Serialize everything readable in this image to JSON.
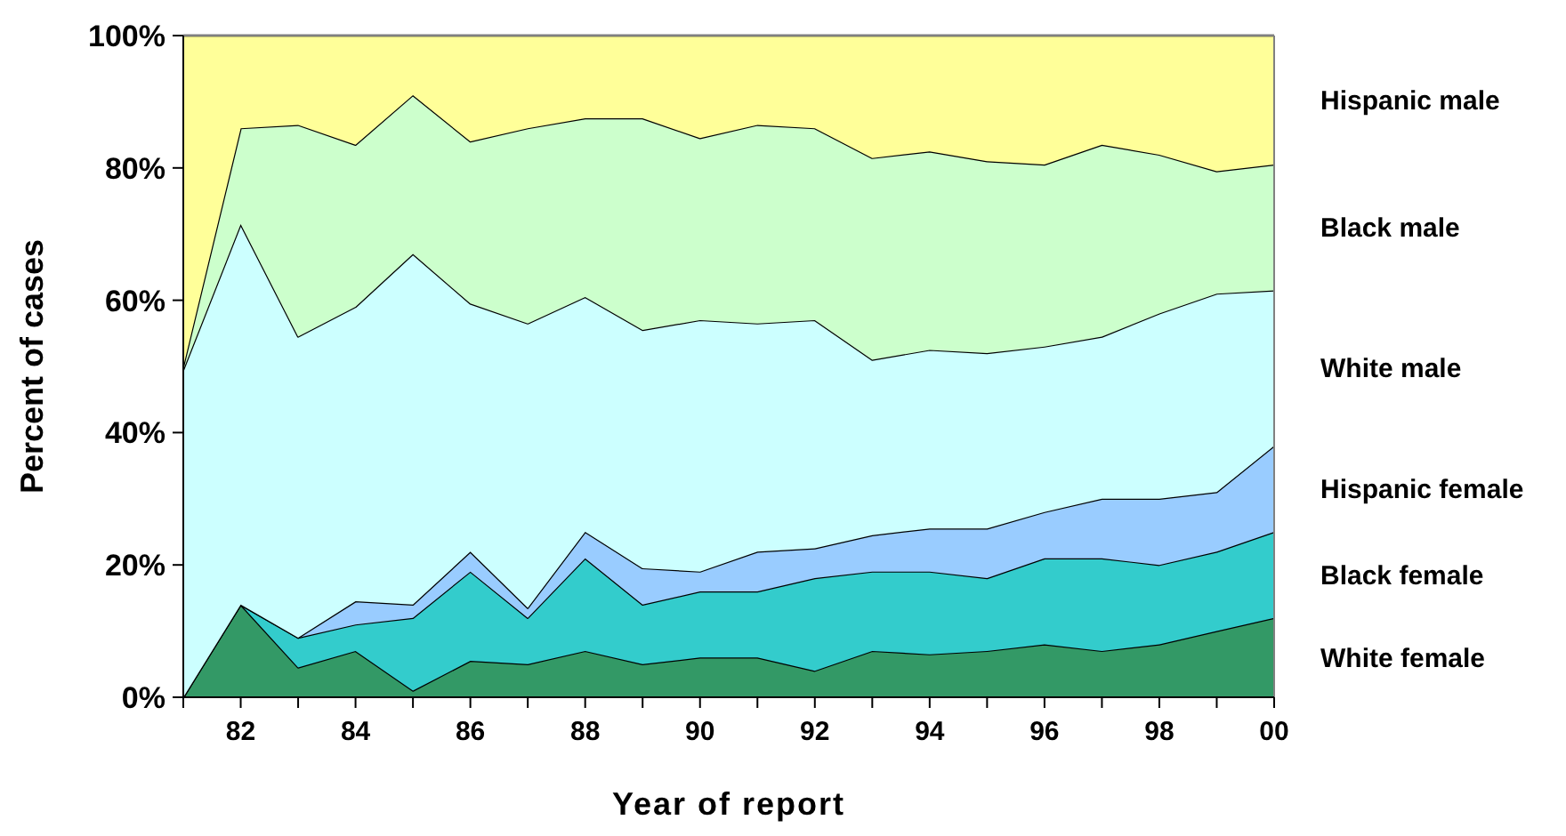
{
  "chart_data": {
    "type": "area",
    "stacked": true,
    "xlabel": "Year of report",
    "ylabel": "Percent of cases",
    "x": [
      1981,
      1982,
      1983,
      1984,
      1985,
      1986,
      1987,
      1988,
      1989,
      1990,
      1991,
      1992,
      1993,
      1994,
      1995,
      1996,
      1997,
      1998,
      1999,
      2000
    ],
    "xlim": [
      1981,
      2000
    ],
    "xticks": [
      {
        "value": 1981,
        "label": null
      },
      {
        "value": 1982,
        "label": "82"
      },
      {
        "value": 1983,
        "label": null
      },
      {
        "value": 1984,
        "label": "84"
      },
      {
        "value": 1985,
        "label": null
      },
      {
        "value": 1986,
        "label": "86"
      },
      {
        "value": 1987,
        "label": null
      },
      {
        "value": 1988,
        "label": "88"
      },
      {
        "value": 1989,
        "label": null
      },
      {
        "value": 1990,
        "label": "90"
      },
      {
        "value": 1991,
        "label": null
      },
      {
        "value": 1992,
        "label": "92"
      },
      {
        "value": 1993,
        "label": null
      },
      {
        "value": 1994,
        "label": "94"
      },
      {
        "value": 1995,
        "label": null
      },
      {
        "value": 1996,
        "label": "96"
      },
      {
        "value": 1997,
        "label": null
      },
      {
        "value": 1998,
        "label": "98"
      },
      {
        "value": 1999,
        "label": null
      },
      {
        "value": 2000,
        "label": "00"
      }
    ],
    "ylim": [
      0,
      100
    ],
    "yticks": [
      {
        "value": 0,
        "label": "0%"
      },
      {
        "value": 20,
        "label": "20%"
      },
      {
        "value": 40,
        "label": "40%"
      },
      {
        "value": 60,
        "label": "60%"
      },
      {
        "value": 80,
        "label": "80%"
      },
      {
        "value": 100,
        "label": "100%"
      }
    ],
    "legend": "right",
    "grid": false,
    "series": [
      {
        "name": "White female",
        "color": "#339966",
        "values": [
          0,
          14,
          4.5,
          7,
          1,
          5.5,
          5,
          7,
          5,
          6,
          6,
          4,
          7,
          6.5,
          7,
          8,
          7,
          8,
          10,
          12
        ]
      },
      {
        "name": "Black female",
        "color": "#33cccc",
        "values": [
          0,
          0,
          4.5,
          4,
          11,
          13.5,
          7,
          14,
          9,
          10,
          10,
          14,
          12,
          12.5,
          11,
          13,
          14,
          12,
          12,
          13
        ]
      },
      {
        "name": "Hispanic female",
        "color": "#99ccff",
        "values": [
          0,
          0,
          0,
          3.5,
          2,
          3,
          1.5,
          4,
          5.5,
          3,
          6,
          4.5,
          5.5,
          6.5,
          7.5,
          7,
          9,
          10,
          9,
          13
        ]
      },
      {
        "name": "White male",
        "color": "#ccffff",
        "values": [
          49.5,
          57.5,
          45.5,
          44.5,
          53,
          37.5,
          43,
          35.5,
          36,
          38,
          34.5,
          34.5,
          26.5,
          27,
          26.5,
          25,
          24.5,
          28,
          30,
          23.5
        ]
      },
      {
        "name": "Black male",
        "color": "#ccffcc",
        "values": [
          0.5,
          14.5,
          32,
          24.5,
          24,
          24.5,
          29.5,
          27,
          32,
          27.5,
          30,
          29,
          30.5,
          30,
          29,
          27.5,
          29,
          24,
          18.5,
          19
        ]
      },
      {
        "name": "Hispanic male",
        "color": "#ffff99",
        "values": [
          50,
          14,
          13.5,
          16.5,
          9,
          16,
          14,
          12.5,
          12.5,
          15.5,
          13.5,
          14,
          18.5,
          17.5,
          19,
          19.5,
          16.5,
          18,
          20.5,
          19.5
        ]
      }
    ]
  }
}
